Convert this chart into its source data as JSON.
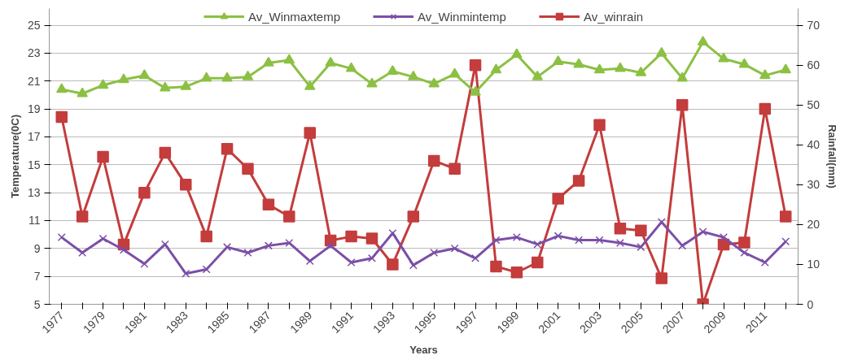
{
  "chart_data": {
    "type": "line",
    "xlabel": "Years",
    "ylabel": "Temperature(0C)",
    "y2label": "Rainfall(mm)",
    "categories": [
      "1977",
      null,
      "1979",
      null,
      "1981",
      null,
      "1983",
      null,
      "1985",
      null,
      "1987",
      null,
      "1989",
      null,
      "1991",
      null,
      "1993",
      null,
      "1995",
      null,
      "1997",
      null,
      "1999",
      null,
      "2001",
      null,
      "2003",
      null,
      "2005",
      null,
      "2007",
      null,
      "2009",
      null,
      "2011",
      null
    ],
    "ylim": [
      5,
      25
    ],
    "yticks": [
      5,
      7,
      9,
      11,
      13,
      15,
      17,
      19,
      21,
      23,
      25
    ],
    "y2lim": [
      0,
      70
    ],
    "y2ticks": [
      0,
      10,
      20,
      30,
      40,
      50,
      60,
      70
    ],
    "grid": "y",
    "legend": "top",
    "line_style": "solid",
    "series": [
      {
        "name": "Av_Winmaxtemp",
        "color": "#8cc043",
        "marker": "triangle",
        "values": [
          20.4,
          20.1,
          20.7,
          21.1,
          21.4,
          20.5,
          20.6,
          21.2,
          21.2,
          21.3,
          22.3,
          22.5,
          20.6,
          22.3,
          21.9,
          20.8,
          21.7,
          21.3,
          20.8,
          21.5,
          20.2,
          21.8,
          22.9,
          21.3,
          22.4,
          22.2,
          21.8,
          21.9,
          21.6,
          23.0,
          21.2,
          23.8,
          22.6,
          22.2,
          21.4,
          21.8
        ]
      },
      {
        "name": "Av_Winmintemp",
        "color": "#7b4fa8",
        "marker": "cross",
        "values": [
          9.8,
          8.7,
          9.7,
          8.9,
          7.9,
          9.3,
          7.2,
          7.5,
          9.1,
          8.7,
          9.2,
          9.4,
          8.1,
          9.2,
          8.0,
          8.3,
          10.1,
          7.8,
          8.7,
          9.0,
          8.3,
          9.6,
          9.8,
          9.3,
          9.9,
          9.6,
          9.6,
          9.4,
          9.1,
          10.9,
          9.2,
          10.2,
          9.8,
          8.7,
          8.0,
          9.5
        ]
      },
      {
        "name": "Av_winrain",
        "color": "#c43c3c",
        "marker": "square",
        "axis": "y2",
        "values": [
          47,
          22,
          37,
          15,
          28,
          38,
          30,
          17,
          39,
          34,
          25,
          22,
          43,
          16,
          17,
          16.5,
          10,
          22,
          36,
          34,
          60,
          9.5,
          8,
          10.5,
          26.5,
          31,
          45,
          19,
          18.5,
          6.5,
          50,
          0,
          15,
          15.5,
          49,
          22
        ]
      }
    ]
  }
}
